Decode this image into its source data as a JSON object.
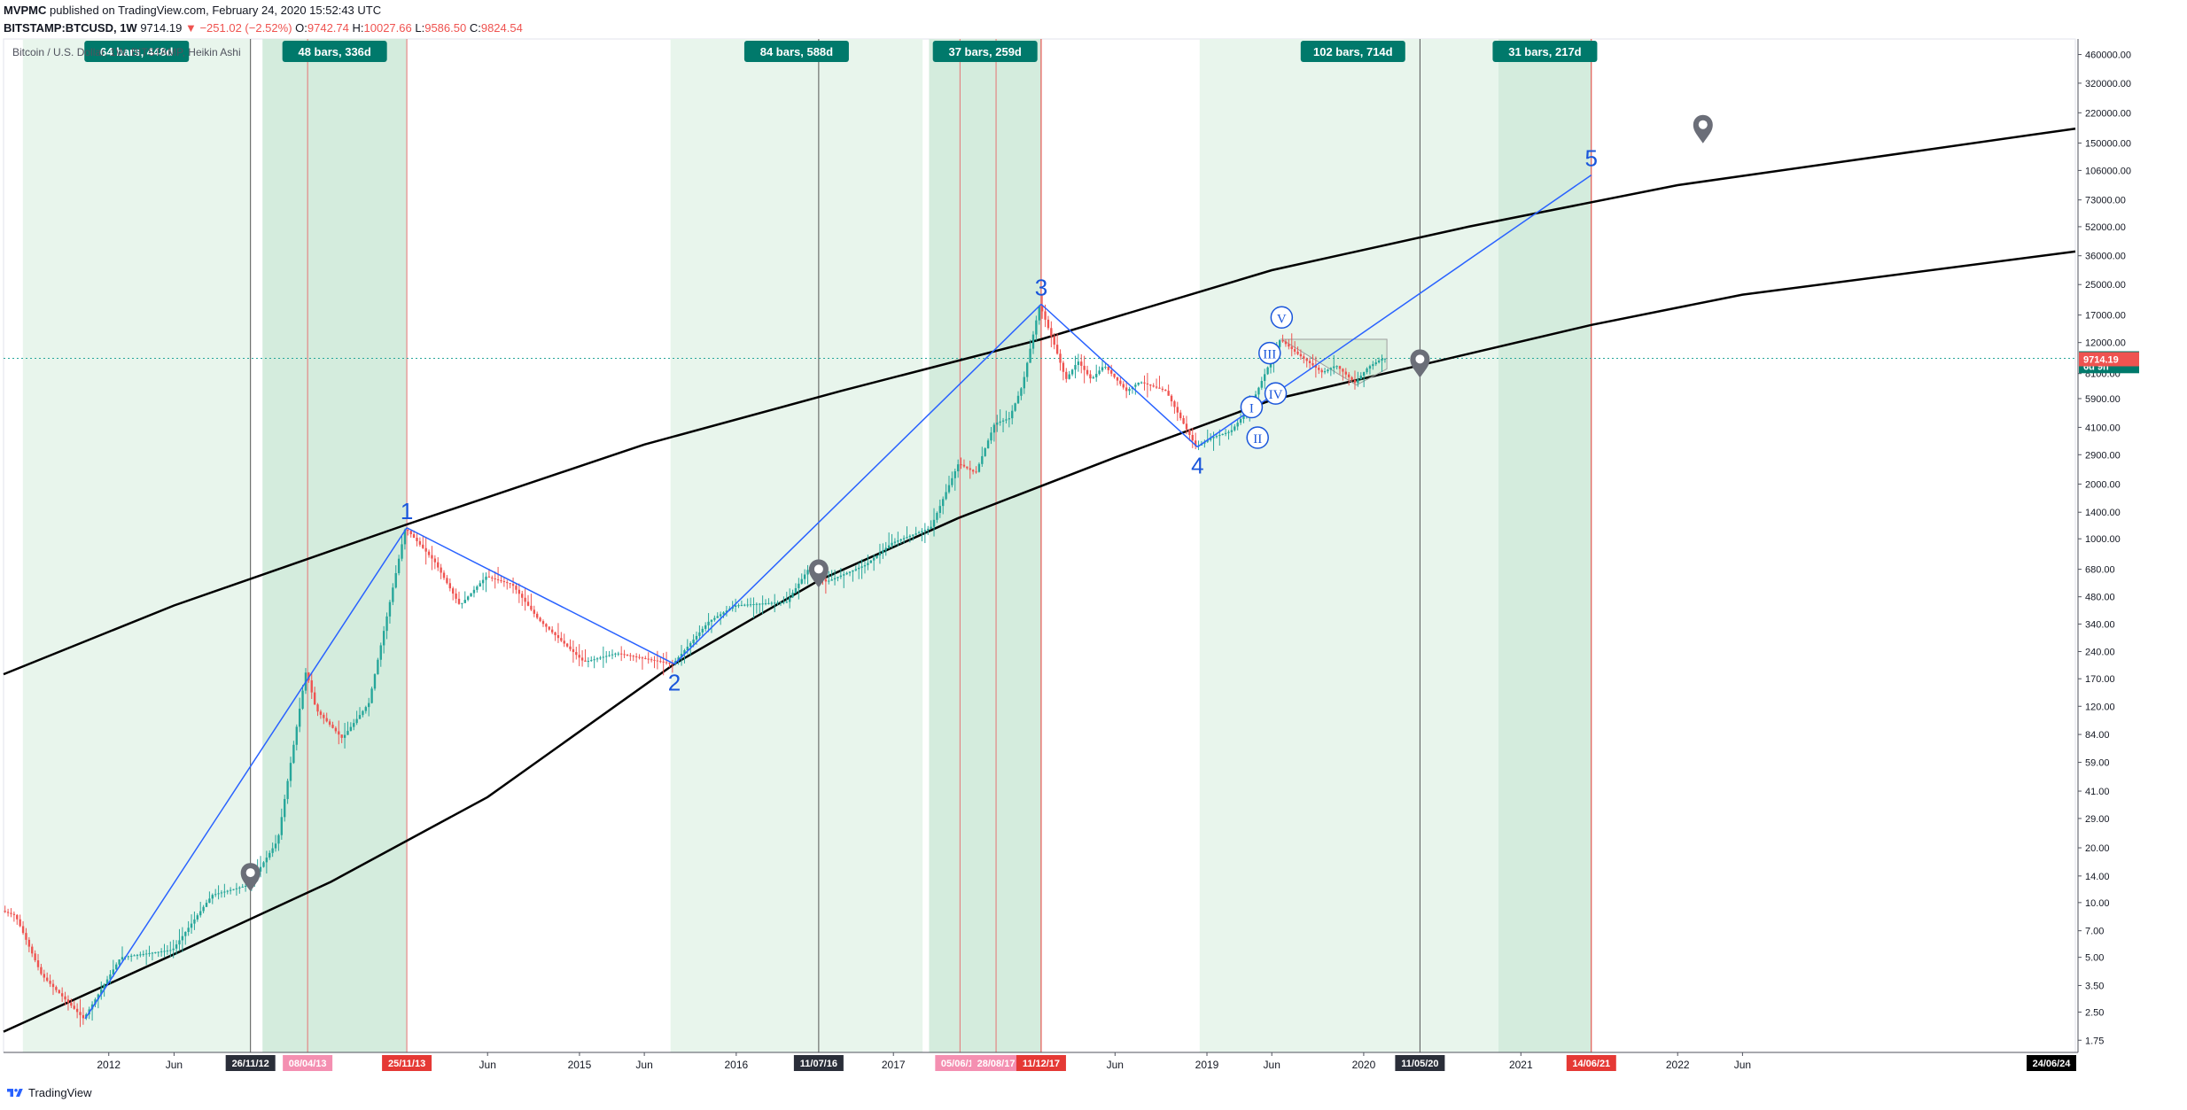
{
  "header": {
    "author": "MVPMC",
    "published": "published on TradingView.com, February 24, 2020 15:52:43 UTC"
  },
  "ohlc": {
    "symbol": "BITSTAMP:BTCUSD, 1W",
    "last": "9714.19",
    "change": "−251.02 (−2.52%)",
    "o_label": "O:",
    "o": "9742.74",
    "h_label": "H:",
    "h": "10027.66",
    "l_label": "L:",
    "l": "9586.50",
    "c_label": "C:",
    "c": "9824.54"
  },
  "legend": "Bitcoin / U.S. Dollar, 1W, BITSTAMP, Heikin Ashi",
  "footer": {
    "brand": "TradingView"
  },
  "colors": {
    "up": "#26a69a",
    "down": "#ef5350",
    "teal_label": "#00796b",
    "wave_blue": "#2962ff",
    "zone_light": "#e8f5ec",
    "zone_dark": "#d4ecdd"
  },
  "chart_data": {
    "type": "candlestick",
    "y_scale": "log",
    "ylim": [
      1.5,
      560000
    ],
    "x_range": [
      "2011-05-01",
      "2024-07-15"
    ],
    "y_ticks": [
      "460000.00",
      "320000.00",
      "220000.00",
      "150000.00",
      "106000.00",
      "73000.00",
      "52000.00",
      "36000.00",
      "25000.00",
      "17000.00",
      "12000.00",
      "8100.00",
      "5900.00",
      "4100.00",
      "2900.00",
      "2000.00",
      "1400.00",
      "1000.00",
      "680.00",
      "480.00",
      "340.00",
      "240.00",
      "170.00",
      "120.00",
      "84.00",
      "59.00",
      "41.00",
      "29.00",
      "20.00",
      "14.00",
      "10.00",
      "7.00",
      "5.00",
      "3.50",
      "2.50",
      "1.75"
    ],
    "x_ticks": [
      {
        "date": "2012-01-01",
        "label": "2012"
      },
      {
        "date": "2012-06-01",
        "label": "Jun"
      },
      {
        "date": "2014-06-01",
        "label": "Jun"
      },
      {
        "date": "2015-01-01",
        "label": "2015"
      },
      {
        "date": "2015-06-01",
        "label": "Jun"
      },
      {
        "date": "2016-01-01",
        "label": "2016"
      },
      {
        "date": "2017-01-01",
        "label": "2017"
      },
      {
        "date": "2018-06-01",
        "label": "Jun"
      },
      {
        "date": "2019-01-01",
        "label": "2019"
      },
      {
        "date": "2019-06-01",
        "label": "Jun"
      },
      {
        "date": "2020-01-01",
        "label": "2020"
      },
      {
        "date": "2021-01-01",
        "label": "2021"
      },
      {
        "date": "2022-01-01",
        "label": "2022"
      },
      {
        "date": "2022-06-01",
        "label": "Jun"
      }
    ],
    "x_date_labels": [
      {
        "date": "2012-11-26",
        "label": "26/11/12",
        "style": "dark"
      },
      {
        "date": "2013-04-08",
        "label": "08/04/13",
        "style": "pink"
      },
      {
        "date": "2013-11-25",
        "label": "25/11/13",
        "style": "red"
      },
      {
        "date": "2016-07-11",
        "label": "11/07/16",
        "style": "dark"
      },
      {
        "date": "2017-06-05",
        "label": "05/06/17",
        "style": "pink"
      },
      {
        "date": "2017-08-28",
        "label": "28/08/17",
        "style": "pink"
      },
      {
        "date": "2017-12-11",
        "label": "11/12/17",
        "style": "red"
      },
      {
        "date": "2020-05-11",
        "label": "11/05/20",
        "style": "dark"
      },
      {
        "date": "2021-06-14",
        "label": "14/06/21",
        "style": "red"
      },
      {
        "date": "2024-06-24",
        "label": "24/06/24",
        "style": "black"
      }
    ],
    "price_labels": [
      {
        "value": 9824.54,
        "label": "9824.54",
        "style": "teal"
      },
      {
        "value": 8900,
        "label": "6d 9h",
        "style": "teal"
      },
      {
        "value": 9714.19,
        "label": "9714.19",
        "style": "red"
      }
    ],
    "zones": [
      {
        "start": "2011-06-15",
        "end": "2012-11-26",
        "tone": "light",
        "label": "64 bars, 448d"
      },
      {
        "start": "2012-12-24",
        "end": "2013-11-25",
        "tone": "dark",
        "label": "48 bars, 336d"
      },
      {
        "start": "2015-08-01",
        "end": "2017-03-10",
        "tone": "light",
        "label": "84 bars, 588d"
      },
      {
        "start": "2017-03-25",
        "end": "2017-12-11",
        "tone": "dark",
        "label": "37 bars, 259d"
      },
      {
        "start": "2018-12-15",
        "end": "2020-11-28",
        "tone": "light",
        "label": "102 bars, 714d"
      },
      {
        "start": "2020-11-10",
        "end": "2021-06-14",
        "tone": "dark",
        "label": "31 bars, 217d"
      }
    ],
    "vlines": [
      {
        "date": "2012-11-26",
        "color": "#555555"
      },
      {
        "date": "2013-04-08",
        "color": "#e57373"
      },
      {
        "date": "2013-11-25",
        "color": "#e57373"
      },
      {
        "date": "2016-07-11",
        "color": "#555555"
      },
      {
        "date": "2017-06-05",
        "color": "#e57373"
      },
      {
        "date": "2017-08-28",
        "color": "#e57373"
      },
      {
        "date": "2017-12-11",
        "color": "#e53935"
      },
      {
        "date": "2020-05-11",
        "color": "#555555"
      },
      {
        "date": "2021-06-14",
        "color": "#e53935"
      }
    ],
    "current_price": 9824.54,
    "wave_points": [
      {
        "label": "1",
        "date": "2013-11-25",
        "value": 1150,
        "place": "above"
      },
      {
        "label": "2",
        "date": "2015-08-10",
        "value": 205,
        "place": "below"
      },
      {
        "label": "3",
        "date": "2017-12-11",
        "value": 19500,
        "place": "above"
      },
      {
        "label": "4",
        "date": "2018-12-10",
        "value": 3200,
        "place": "below"
      },
      {
        "label": "5",
        "date": "2021-06-14",
        "value": 100000,
        "place": "above"
      }
    ],
    "wave_lines": [
      {
        "from": [
          "2011-11-07",
          "2.3"
        ],
        "to": [
          "2013-11-25",
          "1150"
        ]
      },
      {
        "from": [
          "2013-11-25",
          "1150"
        ],
        "to": [
          "2015-08-10",
          "205"
        ]
      },
      {
        "from": [
          "2015-08-10",
          "205"
        ],
        "to": [
          "2017-12-11",
          "19500"
        ]
      },
      {
        "from": [
          "2017-12-11",
          "19500"
        ],
        "to": [
          "2018-12-10",
          "3200"
        ]
      },
      {
        "from": [
          "2018-12-10",
          "3200"
        ],
        "to": [
          "2021-06-14",
          "100000"
        ]
      }
    ],
    "sub_waves": [
      {
        "label": "I",
        "date": "2019-04-15",
        "value": 5300
      },
      {
        "label": "II",
        "date": "2019-04-29",
        "value": 3600
      },
      {
        "label": "III",
        "date": "2019-05-27",
        "value": 10500
      },
      {
        "label": "IV",
        "date": "2019-06-10",
        "value": 6300
      },
      {
        "label": "V",
        "date": "2019-06-24",
        "value": 16500
      }
    ],
    "markers": [
      {
        "date": "2012-11-26",
        "value": 13.5
      },
      {
        "date": "2016-07-11",
        "value": 630
      },
      {
        "date": "2020-05-11",
        "value": 9000
      },
      {
        "date": "2022-03-01",
        "value": 175000
      }
    ],
    "upper_curve": [
      [
        "2011-05-01",
        180
      ],
      [
        "2012-06-01",
        430
      ],
      [
        "2013-11-25",
        1200
      ],
      [
        "2015-06-01",
        3300
      ],
      [
        "2016-09-01",
        6500
      ],
      [
        "2017-12-11",
        12500
      ],
      [
        "2019-06-01",
        30000
      ],
      [
        "2020-09-01",
        52000
      ],
      [
        "2022-01-01",
        88000
      ],
      [
        "2024-07-15",
        180000
      ]
    ],
    "lower_curve": [
      [
        "2011-05-01",
        1.95
      ],
      [
        "2012-06-01",
        5.2
      ],
      [
        "2013-06-01",
        13
      ],
      [
        "2014-06-01",
        38
      ],
      [
        "2015-08-10",
        205
      ],
      [
        "2016-07-11",
        590
      ],
      [
        "2017-06-01",
        1300
      ],
      [
        "2018-06-01",
        2800
      ],
      [
        "2019-06-01",
        5800
      ],
      [
        "2020-05-11",
        9000
      ],
      [
        "2021-06-14",
        15000
      ],
      [
        "2022-06-01",
        22000
      ],
      [
        "2024-07-15",
        38000
      ]
    ],
    "price_path": [
      [
        "2011-05-01",
        9
      ],
      [
        "2011-06-01",
        8.5
      ],
      [
        "2011-08-01",
        4
      ],
      [
        "2011-11-07",
        2.3
      ],
      [
        "2012-02-01",
        5
      ],
      [
        "2012-06-01",
        5.5
      ],
      [
        "2012-09-01",
        11
      ],
      [
        "2012-11-26",
        12.5
      ],
      [
        "2013-02-01",
        22
      ],
      [
        "2013-04-08",
        190
      ],
      [
        "2013-05-01",
        115
      ],
      [
        "2013-07-01",
        80
      ],
      [
        "2013-09-01",
        125
      ],
      [
        "2013-11-25",
        1150
      ],
      [
        "2014-02-01",
        750
      ],
      [
        "2014-04-01",
        430
      ],
      [
        "2014-06-01",
        620
      ],
      [
        "2014-08-01",
        560
      ],
      [
        "2014-10-01",
        360
      ],
      [
        "2015-01-15",
        210
      ],
      [
        "2015-04-01",
        235
      ],
      [
        "2015-08-10",
        205
      ],
      [
        "2015-11-01",
        350
      ],
      [
        "2016-01-01",
        430
      ],
      [
        "2016-05-01",
        450
      ],
      [
        "2016-06-20",
        680
      ],
      [
        "2016-08-01",
        580
      ],
      [
        "2016-11-01",
        720
      ],
      [
        "2017-01-01",
        950
      ],
      [
        "2017-04-01",
        1150
      ],
      [
        "2017-06-05",
        2600
      ],
      [
        "2017-07-15",
        2300
      ],
      [
        "2017-08-28",
        4300
      ],
      [
        "2017-10-01",
        4600
      ],
      [
        "2017-11-01",
        7000
      ],
      [
        "2017-12-11",
        19500
      ],
      [
        "2018-01-15",
        11500
      ],
      [
        "2018-02-10",
        7500
      ],
      [
        "2018-03-10",
        9500
      ],
      [
        "2018-04-10",
        7500
      ],
      [
        "2018-05-10",
        9000
      ],
      [
        "2018-07-01",
        6500
      ],
      [
        "2018-08-01",
        7300
      ],
      [
        "2018-10-01",
        6500
      ],
      [
        "2018-12-10",
        3200
      ],
      [
        "2019-01-15",
        3600
      ],
      [
        "2019-03-01",
        3900
      ],
      [
        "2019-04-15",
        5300
      ],
      [
        "2019-06-24",
        12500
      ],
      [
        "2019-08-01",
        10500
      ],
      [
        "2019-09-30",
        8200
      ],
      [
        "2019-11-01",
        9000
      ],
      [
        "2019-12-15",
        7200
      ],
      [
        "2020-01-15",
        8800
      ],
      [
        "2020-02-17",
        9800
      ]
    ],
    "triangle": [
      [
        "2019-06-24",
        12500
      ],
      [
        "2020-02-24",
        12500
      ],
      [
        "2020-02-24",
        8600
      ],
      [
        "2019-12-15",
        7000
      ]
    ]
  }
}
